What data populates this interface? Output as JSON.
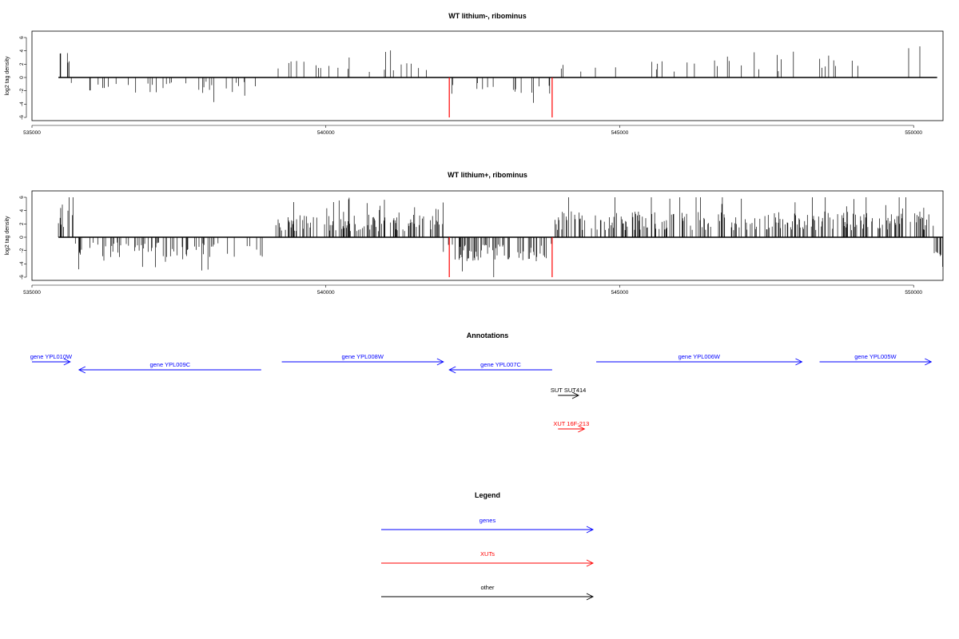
{
  "colors": {
    "gene": "#0000ff",
    "xut": "#ff0000",
    "other": "#000000",
    "bars": "#000000",
    "marker": "#ff0000"
  },
  "chart_data": [
    {
      "type": "bar",
      "title": "WT lithium-, ribominus",
      "ylabel": "log2 tag density",
      "xlim": [
        535000,
        550500
      ],
      "ylim": [
        -6,
        6
      ],
      "x_ticks": [
        535000,
        540000,
        545000,
        550000
      ],
      "y_ticks": [
        6,
        4,
        2,
        0,
        -2,
        -4,
        -6
      ],
      "red_markers": [
        {
          "x": 542100,
          "y": -6
        },
        {
          "x": 543850,
          "y": -6
        }
      ],
      "segments": [
        {
          "x0": 535450,
          "x1": 535650,
          "sign": 1,
          "mean": 3.5,
          "density": 0.15,
          "seed": 11
        },
        {
          "x0": 535650,
          "x1": 538950,
          "sign": -1,
          "mean": 1.8,
          "density": 0.09,
          "seed": 12
        },
        {
          "x0": 539150,
          "x1": 542000,
          "sign": 1,
          "mean": 2.0,
          "density": 0.06,
          "seed": 13
        },
        {
          "x0": 542000,
          "x1": 543900,
          "sign": -1,
          "mean": 2.1,
          "density": 0.08,
          "seed": 14
        },
        {
          "x0": 543900,
          "x1": 550400,
          "sign": 1,
          "mean": 2.2,
          "density": 0.05,
          "seed": 15
        }
      ]
    },
    {
      "type": "bar",
      "title": "WT lithium+, ribominus",
      "ylabel": "log2 tag density",
      "xlim": [
        535000,
        550500
      ],
      "ylim": [
        -6,
        6
      ],
      "x_ticks": [
        535000,
        540000,
        545000,
        550000
      ],
      "y_ticks": [
        6,
        4,
        2,
        0,
        -2,
        -4,
        -6
      ],
      "red_markers": [
        {
          "x": 542100,
          "y": -6
        },
        {
          "x": 543850,
          "y": -6
        }
      ],
      "segments": [
        {
          "x0": 535450,
          "x1": 535700,
          "sign": 1,
          "mean": 4.0,
          "density": 0.35,
          "seed": 21
        },
        {
          "x0": 535700,
          "x1": 538950,
          "sign": -1,
          "mean": 2.3,
          "density": 0.2,
          "seed": 22
        },
        {
          "x0": 539150,
          "x1": 542000,
          "sign": 1,
          "mean": 2.6,
          "density": 0.3,
          "seed": 23
        },
        {
          "x0": 542000,
          "x1": 543900,
          "sign": -1,
          "mean": 2.8,
          "density": 0.3,
          "seed": 24
        },
        {
          "x0": 543900,
          "x1": 550350,
          "sign": 1,
          "mean": 3.0,
          "density": 0.35,
          "seed": 25
        },
        {
          "x0": 550350,
          "x1": 550500,
          "sign": -1,
          "mean": 2.5,
          "density": 0.3,
          "seed": 26
        }
      ]
    }
  ],
  "annotations": {
    "title": "Annotations",
    "features": [
      {
        "label": "gene YPL010W",
        "type": "gene",
        "strand": "+",
        "start": 535000,
        "end": 535650,
        "row": 0
      },
      {
        "label": "gene YPL009C",
        "type": "gene",
        "strand": "-",
        "start": 535800,
        "end": 538900,
        "row": 1
      },
      {
        "label": "gene YPL008W",
        "type": "gene",
        "strand": "+",
        "start": 539250,
        "end": 542000,
        "row": 0
      },
      {
        "label": "gene YPL007C",
        "type": "gene",
        "strand": "-",
        "start": 542100,
        "end": 543850,
        "row": 1
      },
      {
        "label": "gene YPL006W",
        "type": "gene",
        "strand": "+",
        "start": 544600,
        "end": 548100,
        "row": 0
      },
      {
        "label": "gene YPL005W",
        "type": "gene",
        "strand": "+",
        "start": 548400,
        "end": 550300,
        "row": 0
      },
      {
        "label": "SUT SUT414",
        "type": "other",
        "strand": "+",
        "start": 543950,
        "end": 544300,
        "row": 2
      },
      {
        "label": "XUT 16F-213",
        "type": "xut",
        "strand": "+",
        "start": 543950,
        "end": 544400,
        "row": 3
      }
    ]
  },
  "legend": {
    "title": "Legend",
    "items": [
      {
        "label": "genes",
        "type": "gene"
      },
      {
        "label": "XUTs",
        "type": "xut"
      },
      {
        "label": "other",
        "type": "other"
      }
    ]
  }
}
